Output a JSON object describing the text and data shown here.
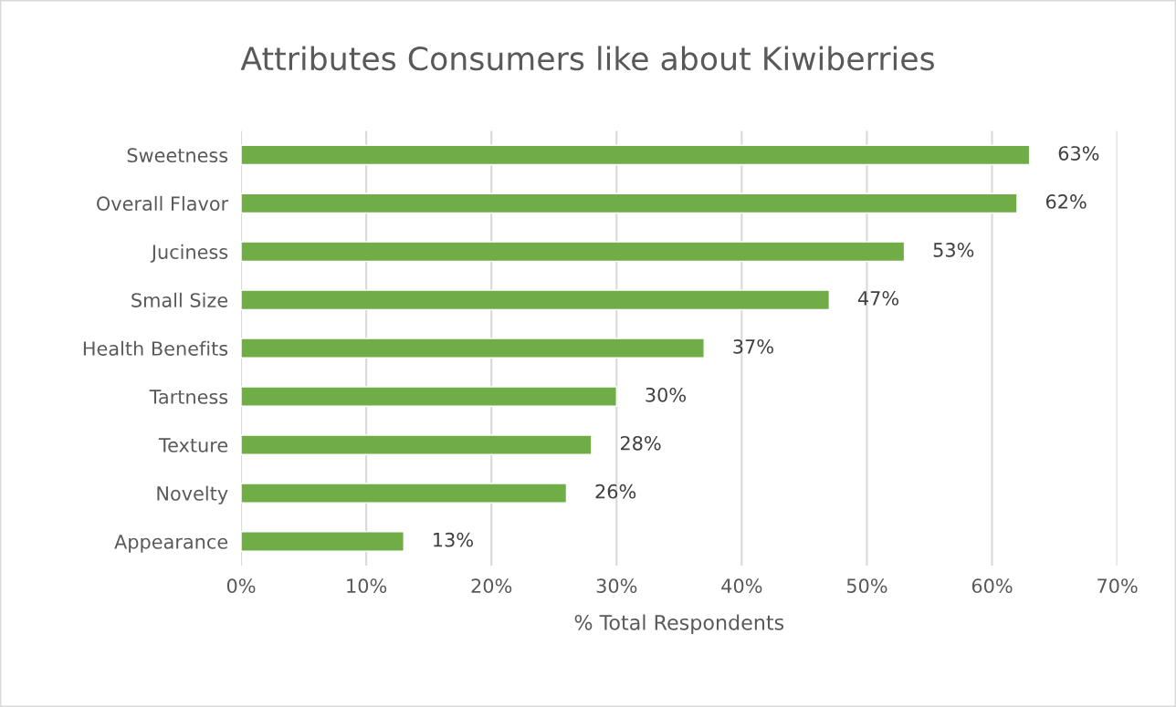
{
  "chart_data": {
    "type": "bar",
    "orientation": "horizontal",
    "title": "Attributes Consumers like about Kiwiberries",
    "xlabel": "% Total Respondents",
    "categories": [
      "Sweetness",
      "Overall Flavor",
      "Juciness",
      "Small Size",
      "Health Benefits",
      "Tartness",
      "Texture",
      "Novelty",
      "Appearance"
    ],
    "values": [
      63,
      62,
      53,
      47,
      37,
      30,
      28,
      26,
      13
    ],
    "value_labels": [
      "63%",
      "62%",
      "53%",
      "47%",
      "37%",
      "30%",
      "28%",
      "26%",
      "13%"
    ],
    "color": "#70ad47",
    "xlim": [
      0,
      70
    ],
    "xticks": [
      {
        "value": 0,
        "label": "0%"
      },
      {
        "value": 10,
        "label": "10%"
      },
      {
        "value": 20,
        "label": "20%"
      },
      {
        "value": 30,
        "label": "30%"
      },
      {
        "value": 40,
        "label": "40%"
      },
      {
        "value": 50,
        "label": "50%"
      },
      {
        "value": 60,
        "label": "60%"
      },
      {
        "value": 70,
        "label": "70%"
      }
    ],
    "grid": "x",
    "legend": false
  }
}
